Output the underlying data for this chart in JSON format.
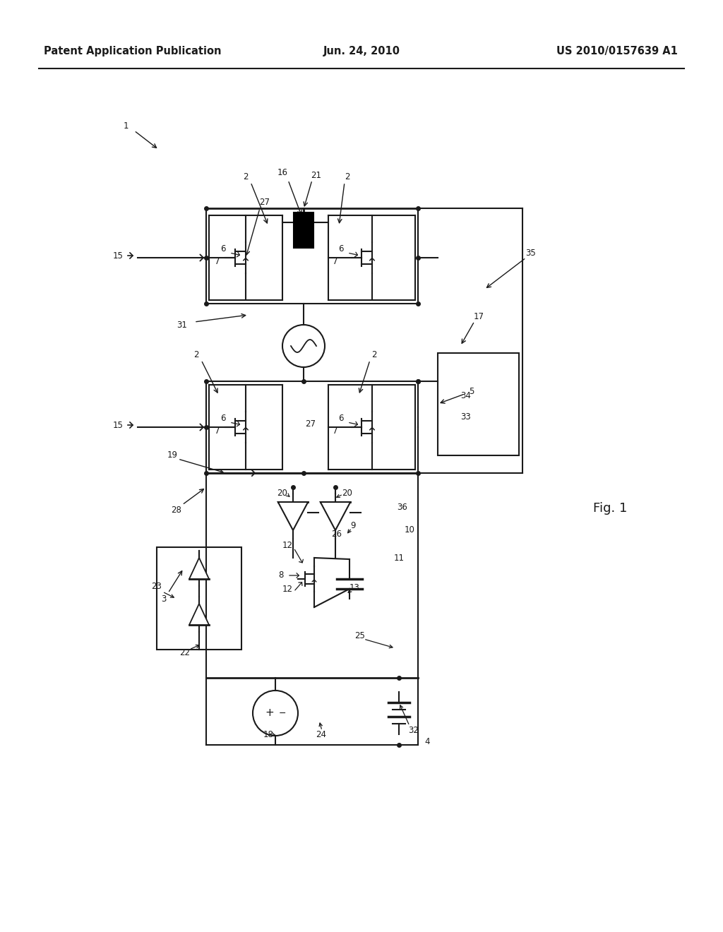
{
  "bg_color": "#ffffff",
  "header_left": "Patent Application Publication",
  "header_center": "Jun. 24, 2010",
  "header_right": "US 2010/0157639 A1",
  "fig_label": "Fig. 1",
  "lc": "#1a1a1a"
}
